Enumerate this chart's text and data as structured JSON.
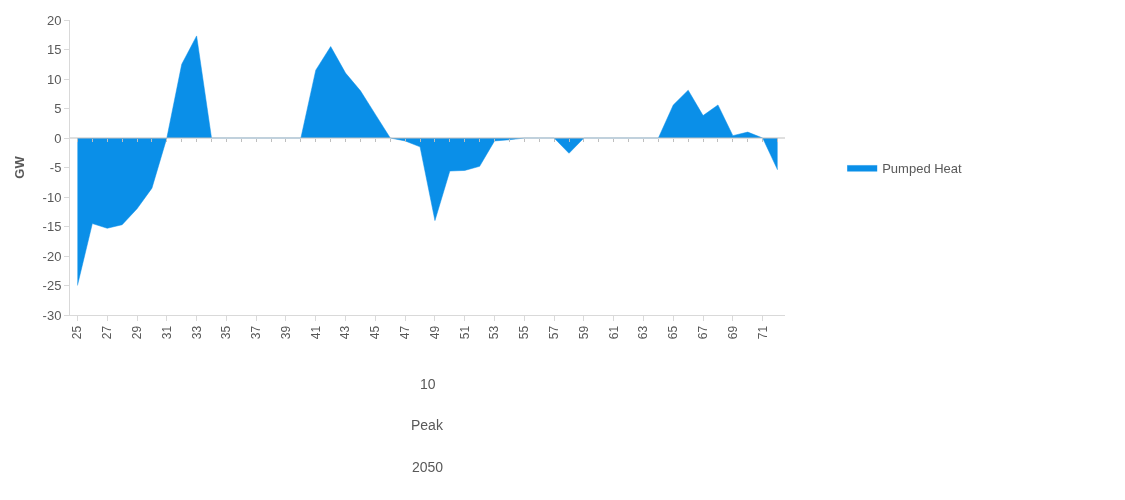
{
  "chart_data": {
    "type": "area",
    "ylabel": "GW",
    "categories": [
      "25",
      null,
      "27",
      null,
      "29",
      null,
      "31",
      null,
      "33",
      null,
      "35",
      null,
      "37",
      null,
      "39",
      null,
      "41",
      null,
      "43",
      null,
      "45",
      null,
      "47",
      null,
      "49",
      null,
      "51",
      null,
      "53",
      null,
      "55",
      null,
      "57",
      null,
      "59",
      null,
      "61",
      null,
      "63",
      null,
      "65",
      null,
      "67",
      null,
      "69",
      null,
      "71",
      null
    ],
    "series": [
      {
        "name": "Pumped Heat",
        "color": "#0a8fe8",
        "values": [
          -25,
          -14.5,
          -15.3,
          -14.7,
          -12,
          -8.5,
          0,
          12.5,
          17.3,
          0,
          0,
          0,
          0,
          0,
          0,
          0,
          11.5,
          15.5,
          11,
          8,
          4,
          0,
          -0.5,
          -1.5,
          -14,
          -5.6,
          -5.5,
          -4.8,
          -0.5,
          -0.3,
          0,
          0,
          0,
          -2.6,
          0,
          0,
          0,
          0,
          0,
          0,
          5.6,
          8.1,
          3.8,
          5.6,
          0.4,
          1,
          0,
          -5.4
        ]
      }
    ],
    "ylim": [
      -30,
      20
    ],
    "yticks": [
      -30,
      -25,
      -20,
      -15,
      -10,
      -5,
      0,
      5,
      10,
      15,
      20
    ],
    "annotations": [
      "10",
      "Peak",
      "2050"
    ],
    "ref_lines": [
      {
        "axis": "y",
        "value": 0,
        "color": "#bfbfbf"
      }
    ],
    "grid": false,
    "legend": "right"
  }
}
